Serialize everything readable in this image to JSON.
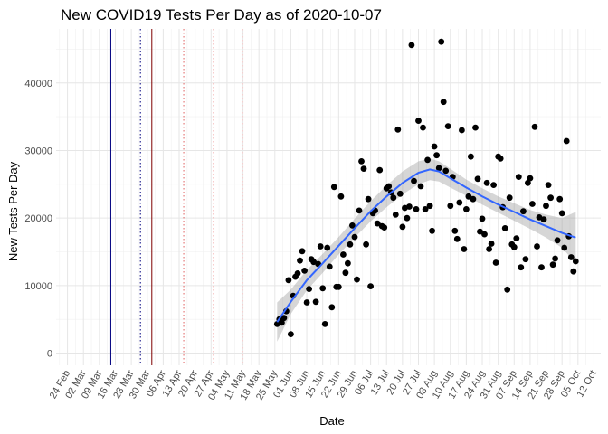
{
  "chart_data": {
    "type": "scatter",
    "title": "New COVID19 Tests Per Day as of 2020-10-07",
    "xlabel": "Date",
    "ylabel": "New Tests Per Day",
    "x_start": "2020-02-19",
    "x_end": "2020-10-15",
    "ylim": [
      -1800,
      48000
    ],
    "grid": true,
    "x_ticks": [
      "24 Feb",
      "02 Mar",
      "09 Mar",
      "16 Mar",
      "23 Mar",
      "30 Mar",
      "06 Apr",
      "13 Apr",
      "20 Apr",
      "27 Apr",
      "04 May",
      "11 May",
      "18 May",
      "25 May",
      "01 Jun",
      "08 Jun",
      "15 Jun",
      "22 Jun",
      "29 Jun",
      "06 Jul",
      "13 Jul",
      "20 Jul",
      "27 Jul",
      "03 Aug",
      "10 Aug",
      "17 Aug",
      "24 Aug",
      "31 Aug",
      "07 Sep",
      "14 Sep",
      "21 Sep",
      "28 Sep",
      "05 Oct",
      "12 Oct"
    ],
    "x_tick_dates": [
      "2020-02-24",
      "2020-03-02",
      "2020-03-09",
      "2020-03-16",
      "2020-03-23",
      "2020-03-30",
      "2020-04-06",
      "2020-04-13",
      "2020-04-20",
      "2020-04-27",
      "2020-05-04",
      "2020-05-11",
      "2020-05-18",
      "2020-05-25",
      "2020-06-01",
      "2020-06-08",
      "2020-06-15",
      "2020-06-22",
      "2020-06-29",
      "2020-07-06",
      "2020-07-13",
      "2020-07-20",
      "2020-07-27",
      "2020-08-03",
      "2020-08-10",
      "2020-08-17",
      "2020-08-24",
      "2020-08-31",
      "2020-09-07",
      "2020-09-14",
      "2020-09-21",
      "2020-09-28",
      "2020-10-05",
      "2020-10-12"
    ],
    "y_ticks": [
      0,
      10000,
      20000,
      30000,
      40000
    ],
    "y_tick_labels": [
      "0",
      "10000",
      "20000",
      "30000",
      "40000"
    ],
    "vlines": [
      {
        "date": "2020-03-14",
        "style": "solid",
        "color": "#00007f"
      },
      {
        "date": "2020-03-27",
        "style": "dotted",
        "color": "#00007f"
      },
      {
        "date": "2020-04-01",
        "style": "solid",
        "color": "#7f0000"
      },
      {
        "date": "2020-04-15",
        "style": "dotted",
        "color": "#e06060"
      },
      {
        "date": "2020-04-28",
        "style": "dotted",
        "color": "#f4b6b6"
      },
      {
        "date": "2020-05-11",
        "style": "dotted",
        "color": "#f6d0d0"
      }
    ],
    "points": [
      {
        "x": "2020-05-26",
        "y": 4300
      },
      {
        "x": "2020-05-27",
        "y": 5000
      },
      {
        "x": "2020-05-28",
        "y": 4500
      },
      {
        "x": "2020-05-29",
        "y": 5200
      },
      {
        "x": "2020-05-30",
        "y": 6200
      },
      {
        "x": "2020-05-31",
        "y": 10800
      },
      {
        "x": "2020-06-01",
        "y": 2800
      },
      {
        "x": "2020-06-02",
        "y": 8500
      },
      {
        "x": "2020-06-03",
        "y": 11300
      },
      {
        "x": "2020-06-04",
        "y": 11800
      },
      {
        "x": "2020-06-05",
        "y": 13700
      },
      {
        "x": "2020-06-06",
        "y": 15100
      },
      {
        "x": "2020-06-07",
        "y": 12200
      },
      {
        "x": "2020-06-08",
        "y": 7500
      },
      {
        "x": "2020-06-09",
        "y": 9500
      },
      {
        "x": "2020-06-10",
        "y": 13900
      },
      {
        "x": "2020-06-11",
        "y": 13500
      },
      {
        "x": "2020-06-12",
        "y": 7600
      },
      {
        "x": "2020-06-13",
        "y": 13200
      },
      {
        "x": "2020-06-14",
        "y": 15800
      },
      {
        "x": "2020-06-15",
        "y": 9600
      },
      {
        "x": "2020-06-16",
        "y": 4300
      },
      {
        "x": "2020-06-17",
        "y": 15600
      },
      {
        "x": "2020-06-18",
        "y": 12800
      },
      {
        "x": "2020-06-19",
        "y": 6800
      },
      {
        "x": "2020-06-20",
        "y": 24600
      },
      {
        "x": "2020-06-21",
        "y": 9800
      },
      {
        "x": "2020-06-22",
        "y": 9800
      },
      {
        "x": "2020-06-23",
        "y": 23200
      },
      {
        "x": "2020-06-24",
        "y": 14600
      },
      {
        "x": "2020-06-25",
        "y": 11900
      },
      {
        "x": "2020-06-26",
        "y": 13300
      },
      {
        "x": "2020-06-27",
        "y": 16100
      },
      {
        "x": "2020-06-28",
        "y": 18900
      },
      {
        "x": "2020-06-29",
        "y": 17200
      },
      {
        "x": "2020-06-30",
        "y": 10900
      },
      {
        "x": "2020-07-01",
        "y": 21100
      },
      {
        "x": "2020-07-02",
        "y": 28400
      },
      {
        "x": "2020-07-03",
        "y": 27300
      },
      {
        "x": "2020-07-04",
        "y": 16100
      },
      {
        "x": "2020-07-05",
        "y": 22800
      },
      {
        "x": "2020-07-06",
        "y": 9900
      },
      {
        "x": "2020-07-07",
        "y": 20700
      },
      {
        "x": "2020-07-08",
        "y": 21100
      },
      {
        "x": "2020-07-09",
        "y": 19200
      },
      {
        "x": "2020-07-10",
        "y": 27100
      },
      {
        "x": "2020-07-11",
        "y": 18800
      },
      {
        "x": "2020-07-12",
        "y": 18600
      },
      {
        "x": "2020-07-13",
        "y": 24400
      },
      {
        "x": "2020-07-14",
        "y": 24700
      },
      {
        "x": "2020-07-15",
        "y": 23800
      },
      {
        "x": "2020-07-16",
        "y": 23000
      },
      {
        "x": "2020-07-17",
        "y": 20500
      },
      {
        "x": "2020-07-18",
        "y": 33100
      },
      {
        "x": "2020-07-19",
        "y": 23600
      },
      {
        "x": "2020-07-20",
        "y": 18700
      },
      {
        "x": "2020-07-21",
        "y": 21500
      },
      {
        "x": "2020-07-22",
        "y": 20000
      },
      {
        "x": "2020-07-23",
        "y": 21700
      },
      {
        "x": "2020-07-24",
        "y": 45600
      },
      {
        "x": "2020-07-25",
        "y": 25500
      },
      {
        "x": "2020-07-26",
        "y": 21300
      },
      {
        "x": "2020-07-27",
        "y": 34400
      },
      {
        "x": "2020-07-28",
        "y": 24700
      },
      {
        "x": "2020-07-29",
        "y": 33400
      },
      {
        "x": "2020-07-30",
        "y": 21300
      },
      {
        "x": "2020-07-31",
        "y": 28600
      },
      {
        "x": "2020-08-01",
        "y": 21800
      },
      {
        "x": "2020-08-02",
        "y": 18100
      },
      {
        "x": "2020-08-03",
        "y": 30600
      },
      {
        "x": "2020-08-04",
        "y": 29300
      },
      {
        "x": "2020-08-05",
        "y": 27400
      },
      {
        "x": "2020-08-06",
        "y": 46100
      },
      {
        "x": "2020-08-07",
        "y": 37200
      },
      {
        "x": "2020-08-08",
        "y": 27000
      },
      {
        "x": "2020-08-09",
        "y": 33600
      },
      {
        "x": "2020-08-10",
        "y": 21800
      },
      {
        "x": "2020-08-11",
        "y": 26100
      },
      {
        "x": "2020-08-12",
        "y": 18100
      },
      {
        "x": "2020-08-13",
        "y": 16900
      },
      {
        "x": "2020-08-14",
        "y": 22300
      },
      {
        "x": "2020-08-15",
        "y": 33000
      },
      {
        "x": "2020-08-16",
        "y": 15400
      },
      {
        "x": "2020-08-17",
        "y": 21300
      },
      {
        "x": "2020-08-18",
        "y": 23200
      },
      {
        "x": "2020-08-19",
        "y": 29100
      },
      {
        "x": "2020-08-20",
        "y": 22800
      },
      {
        "x": "2020-08-21",
        "y": 33400
      },
      {
        "x": "2020-08-22",
        "y": 25800
      },
      {
        "x": "2020-08-23",
        "y": 18000
      },
      {
        "x": "2020-08-24",
        "y": 19900
      },
      {
        "x": "2020-08-25",
        "y": 17600
      },
      {
        "x": "2020-08-26",
        "y": 25200
      },
      {
        "x": "2020-08-27",
        "y": 15400
      },
      {
        "x": "2020-08-28",
        "y": 16200
      },
      {
        "x": "2020-08-29",
        "y": 24900
      },
      {
        "x": "2020-08-30",
        "y": 13400
      },
      {
        "x": "2020-08-31",
        "y": 29100
      },
      {
        "x": "2020-09-01",
        "y": 28800
      },
      {
        "x": "2020-09-02",
        "y": 21600
      },
      {
        "x": "2020-09-03",
        "y": 18500
      },
      {
        "x": "2020-09-04",
        "y": 9400
      },
      {
        "x": "2020-09-05",
        "y": 23000
      },
      {
        "x": "2020-09-06",
        "y": 16100
      },
      {
        "x": "2020-09-07",
        "y": 15700
      },
      {
        "x": "2020-09-08",
        "y": 17000
      },
      {
        "x": "2020-09-09",
        "y": 26100
      },
      {
        "x": "2020-09-10",
        "y": 12700
      },
      {
        "x": "2020-09-11",
        "y": 21000
      },
      {
        "x": "2020-09-12",
        "y": 13900
      },
      {
        "x": "2020-09-13",
        "y": 25200
      },
      {
        "x": "2020-09-14",
        "y": 25900
      },
      {
        "x": "2020-09-15",
        "y": 22100
      },
      {
        "x": "2020-09-16",
        "y": 33500
      },
      {
        "x": "2020-09-17",
        "y": 15800
      },
      {
        "x": "2020-09-18",
        "y": 20100
      },
      {
        "x": "2020-09-19",
        "y": 12700
      },
      {
        "x": "2020-09-20",
        "y": 19800
      },
      {
        "x": "2020-09-21",
        "y": 21800
      },
      {
        "x": "2020-09-22",
        "y": 24900
      },
      {
        "x": "2020-09-23",
        "y": 23000
      },
      {
        "x": "2020-09-24",
        "y": 13100
      },
      {
        "x": "2020-09-25",
        "y": 14000
      },
      {
        "x": "2020-09-26",
        "y": 16700
      },
      {
        "x": "2020-09-27",
        "y": 22800
      },
      {
        "x": "2020-09-28",
        "y": 20700
      },
      {
        "x": "2020-09-29",
        "y": 15600
      },
      {
        "x": "2020-09-30",
        "y": 31400
      },
      {
        "x": "2020-10-01",
        "y": 17300
      },
      {
        "x": "2020-10-02",
        "y": 14200
      },
      {
        "x": "2020-10-03",
        "y": 12100
      },
      {
        "x": "2020-10-04",
        "y": 13600
      }
    ],
    "smooth": [
      {
        "x": "2020-05-26",
        "y": 4600
      },
      {
        "x": "2020-06-01",
        "y": 7600
      },
      {
        "x": "2020-06-08",
        "y": 10800
      },
      {
        "x": "2020-06-15",
        "y": 13300
      },
      {
        "x": "2020-06-22",
        "y": 15900
      },
      {
        "x": "2020-06-29",
        "y": 18500
      },
      {
        "x": "2020-07-06",
        "y": 21000
      },
      {
        "x": "2020-07-13",
        "y": 23200
      },
      {
        "x": "2020-07-20",
        "y": 25200
      },
      {
        "x": "2020-07-27",
        "y": 26700
      },
      {
        "x": "2020-08-01",
        "y": 27200
      },
      {
        "x": "2020-08-05",
        "y": 26900
      },
      {
        "x": "2020-08-10",
        "y": 25900
      },
      {
        "x": "2020-08-17",
        "y": 24500
      },
      {
        "x": "2020-08-24",
        "y": 23200
      },
      {
        "x": "2020-08-31",
        "y": 22000
      },
      {
        "x": "2020-09-07",
        "y": 20900
      },
      {
        "x": "2020-09-14",
        "y": 19800
      },
      {
        "x": "2020-09-21",
        "y": 18800
      },
      {
        "x": "2020-09-28",
        "y": 17800
      },
      {
        "x": "2020-10-04",
        "y": 17100
      }
    ],
    "smooth_band": [
      {
        "x": "2020-05-26",
        "lo": 1700,
        "hi": 7500
      },
      {
        "x": "2020-06-01",
        "lo": 5800,
        "hi": 9400
      },
      {
        "x": "2020-06-08",
        "lo": 9300,
        "hi": 12300
      },
      {
        "x": "2020-06-15",
        "lo": 11900,
        "hi": 14700
      },
      {
        "x": "2020-06-22",
        "lo": 14600,
        "hi": 17200
      },
      {
        "x": "2020-06-29",
        "lo": 17100,
        "hi": 19900
      },
      {
        "x": "2020-07-06",
        "lo": 19500,
        "hi": 22500
      },
      {
        "x": "2020-07-13",
        "lo": 21600,
        "hi": 24800
      },
      {
        "x": "2020-07-20",
        "lo": 23500,
        "hi": 26900
      },
      {
        "x": "2020-07-27",
        "lo": 25000,
        "hi": 28400
      },
      {
        "x": "2020-08-01",
        "lo": 25600,
        "hi": 28800
      },
      {
        "x": "2020-08-05",
        "lo": 25400,
        "hi": 28400
      },
      {
        "x": "2020-08-10",
        "lo": 24500,
        "hi": 27300
      },
      {
        "x": "2020-08-17",
        "lo": 23300,
        "hi": 25700
      },
      {
        "x": "2020-08-24",
        "lo": 22000,
        "hi": 24400
      },
      {
        "x": "2020-08-31",
        "lo": 20800,
        "hi": 23200
      },
      {
        "x": "2020-09-07",
        "lo": 19600,
        "hi": 22200
      },
      {
        "x": "2020-09-14",
        "lo": 18400,
        "hi": 21200
      },
      {
        "x": "2020-09-21",
        "lo": 17100,
        "hi": 20500
      },
      {
        "x": "2020-09-28",
        "lo": 15600,
        "hi": 20000
      },
      {
        "x": "2020-10-04",
        "lo": 13300,
        "hi": 20900
      }
    ],
    "point_color": "#000000",
    "smooth_color": "#3366ff",
    "band_color": "#999999"
  }
}
